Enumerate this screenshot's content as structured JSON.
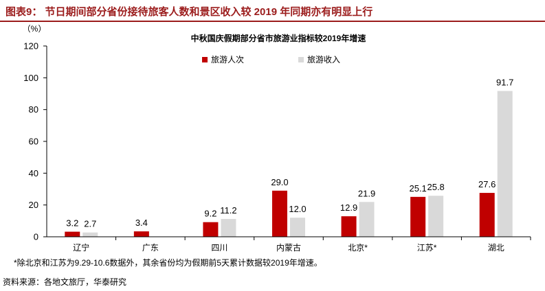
{
  "header": {
    "title": "图表9：  节日期间部分省份接待旅客人数和景区收入较 2019 年同期亦有明显上行"
  },
  "chart_data": {
    "type": "bar",
    "title": "中秋国庆假期部分省市旅游业指标较2019年增速",
    "ylabel": "（%）",
    "ylim": [
      0,
      120
    ],
    "yticks": [
      0,
      20,
      40,
      60,
      80,
      100,
      120
    ],
    "categories": [
      "辽宁",
      "广东",
      "四川",
      "内蒙古",
      "北京*",
      "江苏*",
      "湖北"
    ],
    "legend_position": "top-center",
    "series": [
      {
        "name": "旅游人次",
        "color": "#c00000",
        "values": [
          3.2,
          3.4,
          9.2,
          29.0,
          12.9,
          25.1,
          27.6
        ],
        "labels": [
          "3.2",
          "3.4",
          "9.2",
          "29.0",
          "12.9",
          "25.1",
          "27.6"
        ]
      },
      {
        "name": "旅游收入",
        "color": "#d9d9d9",
        "values": [
          2.7,
          null,
          11.2,
          12.0,
          21.9,
          25.8,
          91.7
        ],
        "labels": [
          "2.7",
          "",
          "11.2",
          "12.0",
          "21.9",
          "25.8",
          "91.7"
        ]
      }
    ]
  },
  "footer": {
    "note": "*除北京和江苏为9.29-10.6数据外，其余省份均为假期前5天累计数据较2019年增速。",
    "source": "资料来源：各地文旅厅，华泰研究"
  }
}
